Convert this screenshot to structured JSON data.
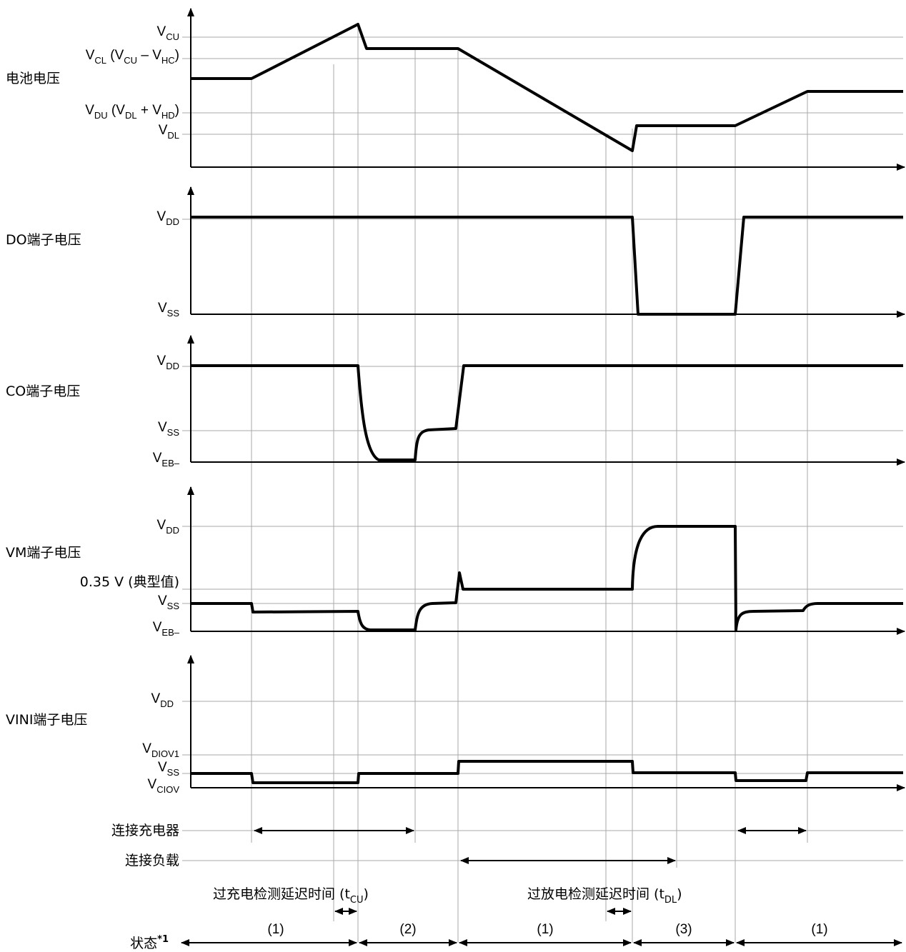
{
  "panels": {
    "battery": {
      "name": "电池电压",
      "levels": {
        "vcu": {
          "main": "V",
          "sub": "CU"
        },
        "vcl": {
          "p1": "V",
          "s1": "CL",
          "p2": " (V",
          "s2": "CU",
          "p3": " – V",
          "s3": "HC",
          "p4": ")"
        },
        "vdu": {
          "p1": "V",
          "s1": "DU",
          "p2": " (V",
          "s2": "DL",
          "p3": " + V",
          "s3": "HD",
          "p4": ")"
        },
        "vdl": {
          "main": "V",
          "sub": "DL"
        }
      }
    },
    "do": {
      "name": "DO端子电压",
      "levels": {
        "vdd": {
          "main": "V",
          "sub": "DD"
        },
        "vss": {
          "main": "V",
          "sub": "SS"
        }
      }
    },
    "co": {
      "name": "CO端子电压",
      "levels": {
        "vdd": {
          "main": "V",
          "sub": "DD"
        },
        "vss": {
          "main": "V",
          "sub": "SS"
        },
        "veb": {
          "main": "V",
          "sub": "EB–"
        }
      }
    },
    "vm": {
      "name": "VM端子电压",
      "levels": {
        "vdd": {
          "main": "V",
          "sub": "DD"
        },
        "typ": "0.35 V (典型值)",
        "vss": {
          "main": "V",
          "sub": "SS"
        },
        "veb": {
          "main": "V",
          "sub": "EB–"
        }
      }
    },
    "vini": {
      "name": "VINI端子电压",
      "levels": {
        "vdd": {
          "main": "V",
          "sub": "DD"
        },
        "vdiov1": {
          "main": "V",
          "sub": "DIOV1"
        },
        "vss": {
          "main": "V",
          "sub": "SS"
        },
        "vciov": {
          "main": "V",
          "sub": "CIOV"
        }
      }
    }
  },
  "conditions": {
    "charger": "连接充电器",
    "load": "连接负载"
  },
  "delays": {
    "overcharge": {
      "text": "过充电检测延迟时间 (t",
      "sub": "CU",
      "end": ")"
    },
    "overdischarge": {
      "text": "过放电检测延迟时间 (t",
      "sub": "DL",
      "end": ")"
    }
  },
  "state": {
    "label": "状态",
    "note": "*1",
    "segments": [
      "(1)",
      "(2)",
      "(1)",
      "(3)",
      "(1)"
    ]
  }
}
